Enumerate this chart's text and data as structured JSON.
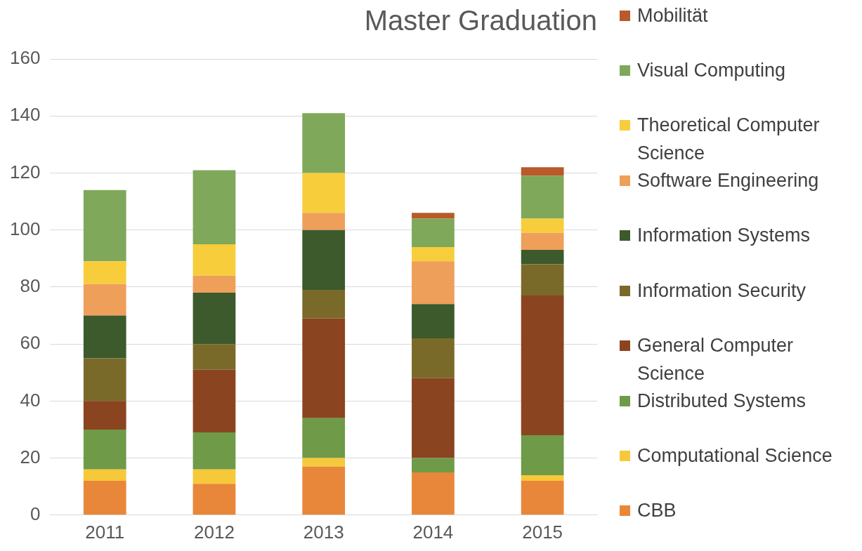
{
  "chart_data": {
    "type": "bar",
    "title": "Master Graduation",
    "stacked": true,
    "categories": [
      "2011",
      "2012",
      "2013",
      "2014",
      "2015"
    ],
    "series": [
      {
        "name": "CBB",
        "color": "#e8873a",
        "values": [
          12,
          11,
          17,
          15,
          12
        ]
      },
      {
        "name": "Computational Science",
        "color": "#f5c93a",
        "values": [
          4,
          5,
          3,
          0,
          2
        ]
      },
      {
        "name": "Distributed Systems",
        "color": "#6f9a48",
        "values": [
          14,
          13,
          14,
          5,
          14
        ]
      },
      {
        "name": "General Computer Science",
        "color": "#8b4420",
        "values": [
          10,
          22,
          35,
          28,
          49
        ]
      },
      {
        "name": "Information Security",
        "color": "#7a6a2a",
        "values": [
          15,
          9,
          10,
          14,
          11
        ]
      },
      {
        "name": "Information Systems",
        "color": "#3c5a2c",
        "values": [
          15,
          18,
          21,
          12,
          5
        ]
      },
      {
        "name": "Software Engineering",
        "color": "#ee9f5a",
        "values": [
          11,
          6,
          6,
          15,
          6
        ]
      },
      {
        "name": "Theoretical Computer Science",
        "color": "#f7cd3c",
        "values": [
          8,
          11,
          14,
          5,
          5
        ]
      },
      {
        "name": "Visual Computing",
        "color": "#7fa85a",
        "values": [
          25,
          26,
          21,
          10,
          15
        ]
      },
      {
        "name": "Mobilität",
        "color": "#b85a2a",
        "values": [
          0,
          0,
          0,
          2,
          3
        ]
      }
    ],
    "ylim": [
      0,
      160
    ],
    "yticks": [
      0,
      20,
      40,
      60,
      80,
      100,
      120,
      140,
      160
    ],
    "grid": "y",
    "legend": "right"
  }
}
